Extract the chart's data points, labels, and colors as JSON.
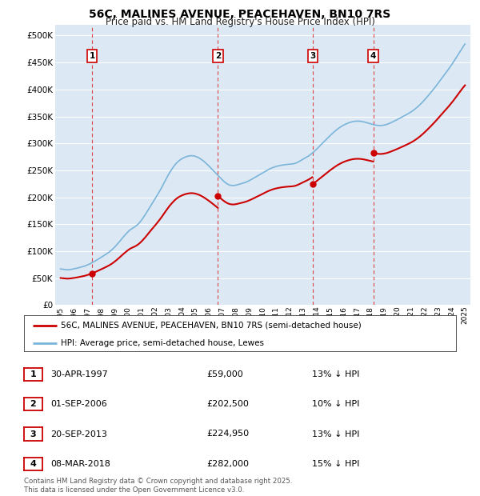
{
  "title": "56C, MALINES AVENUE, PEACEHAVEN, BN10 7RS",
  "subtitle": "Price paid vs. HM Land Registry's House Price Index (HPI)",
  "ytick_values": [
    0,
    50000,
    100000,
    150000,
    200000,
    250000,
    300000,
    350000,
    400000,
    450000,
    500000
  ],
  "ylim": [
    0,
    520000
  ],
  "purchases": [
    {
      "number": 1,
      "date": "30-APR-1997",
      "price": 59000,
      "year": 1997.33
    },
    {
      "number": 2,
      "date": "01-SEP-2006",
      "price": 202500,
      "year": 2006.67
    },
    {
      "number": 3,
      "date": "20-SEP-2013",
      "price": 224950,
      "year": 2013.72
    },
    {
      "number": 4,
      "date": "08-MAR-2018",
      "price": 282000,
      "year": 2018.19
    }
  ],
  "purchase_pct": [
    "13% ↓ HPI",
    "10% ↓ HPI",
    "13% ↓ HPI",
    "15% ↓ HPI"
  ],
  "legend_label_red": "56C, MALINES AVENUE, PEACEHAVEN, BN10 7RS (semi-detached house)",
  "legend_label_blue": "HPI: Average price, semi-detached house, Lewes",
  "footer": "Contains HM Land Registry data © Crown copyright and database right 2025.\nThis data is licensed under the Open Government Licence v3.0.",
  "hpi_color": "#7ab4d8",
  "price_color": "#cc0000",
  "vline_color": "#dd3333",
  "plot_bg_color": "#dce9f5",
  "hpi_data_years": [
    1995.0,
    1995.083,
    1995.167,
    1995.25,
    1995.333,
    1995.417,
    1995.5,
    1995.583,
    1995.667,
    1995.75,
    1995.833,
    1995.917,
    1996.0,
    1996.083,
    1996.167,
    1996.25,
    1996.333,
    1996.417,
    1996.5,
    1996.583,
    1996.667,
    1996.75,
    1996.833,
    1996.917,
    1997.0,
    1997.083,
    1997.167,
    1997.25,
    1997.333,
    1997.417,
    1997.5,
    1997.583,
    1997.667,
    1997.75,
    1997.833,
    1997.917,
    1998.0,
    1998.083,
    1998.167,
    1998.25,
    1998.333,
    1998.417,
    1998.5,
    1998.583,
    1998.667,
    1998.75,
    1998.833,
    1998.917,
    1999.0,
    1999.083,
    1999.167,
    1999.25,
    1999.333,
    1999.417,
    1999.5,
    1999.583,
    1999.667,
    1999.75,
    1999.833,
    1999.917,
    2000.0,
    2000.083,
    2000.167,
    2000.25,
    2000.333,
    2000.417,
    2000.5,
    2000.583,
    2000.667,
    2000.75,
    2000.833,
    2000.917,
    2001.0,
    2001.083,
    2001.167,
    2001.25,
    2001.333,
    2001.417,
    2001.5,
    2001.583,
    2001.667,
    2001.75,
    2001.833,
    2001.917,
    2002.0,
    2002.083,
    2002.167,
    2002.25,
    2002.333,
    2002.417,
    2002.5,
    2002.583,
    2002.667,
    2002.75,
    2002.833,
    2002.917,
    2003.0,
    2003.083,
    2003.167,
    2003.25,
    2003.333,
    2003.417,
    2003.5,
    2003.583,
    2003.667,
    2003.75,
    2003.833,
    2003.917,
    2004.0,
    2004.083,
    2004.167,
    2004.25,
    2004.333,
    2004.417,
    2004.5,
    2004.583,
    2004.667,
    2004.75,
    2004.833,
    2004.917,
    2005.0,
    2005.083,
    2005.167,
    2005.25,
    2005.333,
    2005.417,
    2005.5,
    2005.583,
    2005.667,
    2005.75,
    2005.833,
    2005.917,
    2006.0,
    2006.083,
    2006.167,
    2006.25,
    2006.333,
    2006.417,
    2006.5,
    2006.583,
    2006.667,
    2006.75,
    2006.833,
    2006.917,
    2007.0,
    2007.083,
    2007.167,
    2007.25,
    2007.333,
    2007.417,
    2007.5,
    2007.583,
    2007.667,
    2007.75,
    2007.833,
    2007.917,
    2008.0,
    2008.083,
    2008.167,
    2008.25,
    2008.333,
    2008.417,
    2008.5,
    2008.583,
    2008.667,
    2008.75,
    2008.833,
    2008.917,
    2009.0,
    2009.083,
    2009.167,
    2009.25,
    2009.333,
    2009.417,
    2009.5,
    2009.583,
    2009.667,
    2009.75,
    2009.833,
    2009.917,
    2010.0,
    2010.083,
    2010.167,
    2010.25,
    2010.333,
    2010.417,
    2010.5,
    2010.583,
    2010.667,
    2010.75,
    2010.833,
    2010.917,
    2011.0,
    2011.083,
    2011.167,
    2011.25,
    2011.333,
    2011.417,
    2011.5,
    2011.583,
    2011.667,
    2011.75,
    2011.833,
    2011.917,
    2012.0,
    2012.083,
    2012.167,
    2012.25,
    2012.333,
    2012.417,
    2012.5,
    2012.583,
    2012.667,
    2012.75,
    2012.833,
    2012.917,
    2013.0,
    2013.083,
    2013.167,
    2013.25,
    2013.333,
    2013.417,
    2013.5,
    2013.583,
    2013.667,
    2013.75,
    2013.833,
    2013.917,
    2014.0,
    2014.083,
    2014.167,
    2014.25,
    2014.333,
    2014.417,
    2014.5,
    2014.583,
    2014.667,
    2014.75,
    2014.833,
    2014.917,
    2015.0,
    2015.083,
    2015.167,
    2015.25,
    2015.333,
    2015.417,
    2015.5,
    2015.583,
    2015.667,
    2015.75,
    2015.833,
    2015.917,
    2016.0,
    2016.083,
    2016.167,
    2016.25,
    2016.333,
    2016.417,
    2016.5,
    2016.583,
    2016.667,
    2016.75,
    2016.833,
    2016.917,
    2017.0,
    2017.083,
    2017.167,
    2017.25,
    2017.333,
    2017.417,
    2017.5,
    2017.583,
    2017.667,
    2017.75,
    2017.833,
    2017.917,
    2018.0,
    2018.083,
    2018.167,
    2018.25,
    2018.333,
    2018.417,
    2018.5,
    2018.583,
    2018.667,
    2018.75,
    2018.833,
    2018.917,
    2019.0,
    2019.083,
    2019.167,
    2019.25,
    2019.333,
    2019.417,
    2019.5,
    2019.583,
    2019.667,
    2019.75,
    2019.833,
    2019.917,
    2020.0,
    2020.083,
    2020.167,
    2020.25,
    2020.333,
    2020.417,
    2020.5,
    2020.583,
    2020.667,
    2020.75,
    2020.833,
    2020.917,
    2021.0,
    2021.083,
    2021.167,
    2021.25,
    2021.333,
    2021.417,
    2021.5,
    2021.583,
    2021.667,
    2021.75,
    2021.833,
    2021.917,
    2022.0,
    2022.083,
    2022.167,
    2022.25,
    2022.333,
    2022.417,
    2022.5,
    2022.583,
    2022.667,
    2022.75,
    2022.833,
    2022.917,
    2023.0,
    2023.083,
    2023.167,
    2023.25,
    2023.333,
    2023.417,
    2023.5,
    2023.583,
    2023.667,
    2023.75,
    2023.833,
    2023.917,
    2024.0,
    2024.083,
    2024.167,
    2024.25,
    2024.333,
    2024.417,
    2024.5,
    2024.583,
    2024.667,
    2024.75,
    2024.833,
    2024.917,
    2025.0
  ],
  "hpi_data_values": [
    67000,
    66700,
    66400,
    66100,
    65800,
    65600,
    65400,
    65500,
    65700,
    66000,
    66400,
    66800,
    67200,
    67600,
    68100,
    68600,
    69200,
    69800,
    70400,
    71000,
    71500,
    72000,
    72800,
    73700,
    74600,
    75400,
    76300,
    77500,
    78800,
    79800,
    80800,
    82000,
    83200,
    84500,
    85800,
    87100,
    88400,
    89700,
    91000,
    92300,
    93700,
    95100,
    96500,
    98000,
    99600,
    101300,
    103200,
    105200,
    107300,
    109500,
    111800,
    114200,
    116600,
    119100,
    121700,
    124200,
    126700,
    129100,
    131400,
    133700,
    135900,
    137900,
    139700,
    141200,
    142500,
    143700,
    145000,
    146500,
    148200,
    150100,
    152300,
    154800,
    157500,
    160400,
    163400,
    166600,
    169900,
    173300,
    176700,
    180200,
    183600,
    187000,
    190300,
    193600,
    196900,
    200200,
    203600,
    207100,
    210700,
    214400,
    218200,
    222200,
    226200,
    230200,
    234200,
    238100,
    241900,
    245500,
    248800,
    252000,
    255100,
    258000,
    260700,
    263100,
    265200,
    267100,
    268700,
    270200,
    271500,
    272700,
    273700,
    274600,
    275400,
    276000,
    276500,
    276900,
    277100,
    277100,
    276900,
    276500,
    275900,
    275200,
    274300,
    273200,
    272000,
    270600,
    269100,
    267500,
    265800,
    264000,
    262000,
    260100,
    258100,
    256000,
    253900,
    251700,
    249500,
    247300,
    245100,
    242900,
    240700,
    238500,
    236300,
    234200,
    232200,
    230200,
    228400,
    226700,
    225200,
    224000,
    223100,
    222400,
    222000,
    221800,
    221800,
    222000,
    222400,
    222900,
    223500,
    224100,
    224700,
    225300,
    225900,
    226500,
    227200,
    228000,
    228900,
    229900,
    230900,
    232000,
    233200,
    234300,
    235500,
    236700,
    238000,
    239200,
    240400,
    241600,
    242800,
    244100,
    245300,
    246600,
    247900,
    249100,
    250300,
    251400,
    252500,
    253400,
    254300,
    255200,
    255900,
    256600,
    257200,
    257800,
    258300,
    258800,
    259200,
    259600,
    259900,
    260200,
    260500,
    260800,
    261000,
    261200,
    261400,
    261500,
    261700,
    262000,
    262400,
    263100,
    263900,
    264900,
    266000,
    267200,
    268400,
    269600,
    270800,
    272000,
    273200,
    274400,
    275700,
    277000,
    278500,
    280100,
    281800,
    283600,
    285500,
    287500,
    289500,
    291600,
    293700,
    295800,
    297900,
    300000,
    302100,
    304200,
    306300,
    308400,
    310500,
    312600,
    314600,
    316600,
    318500,
    320400,
    322200,
    324000,
    325700,
    327300,
    328800,
    330200,
    331500,
    332800,
    333900,
    335000,
    336000,
    336900,
    337700,
    338500,
    339200,
    339800,
    340300,
    340700,
    341000,
    341200,
    341300,
    341300,
    341200,
    341000,
    340700,
    340300,
    339800,
    339300,
    338700,
    338100,
    337500,
    336900,
    336300,
    335700,
    335200,
    334600,
    334100,
    333700,
    333400,
    333200,
    333100,
    333100,
    333200,
    333500,
    333900,
    334400,
    335000,
    335700,
    336500,
    337400,
    338300,
    339300,
    340300,
    341300,
    342300,
    343400,
    344500,
    345600,
    346700,
    347800,
    348900,
    350000,
    351100,
    352300,
    353500,
    354700,
    355900,
    357100,
    358400,
    359800,
    361300,
    362900,
    364600,
    366300,
    368100,
    370000,
    372000,
    374100,
    376200,
    378400,
    380700,
    383100,
    385500,
    387900,
    390400,
    392900,
    395400,
    398000,
    400600,
    403200,
    405900,
    408700,
    411500,
    414300,
    417100,
    419900,
    422700,
    425500,
    428300,
    431100,
    433900,
    436700,
    439600,
    442600,
    445600,
    448700,
    451900,
    455200,
    458500,
    461800,
    465200,
    468600,
    471900,
    475200,
    478400,
    481500,
    484400
  ]
}
